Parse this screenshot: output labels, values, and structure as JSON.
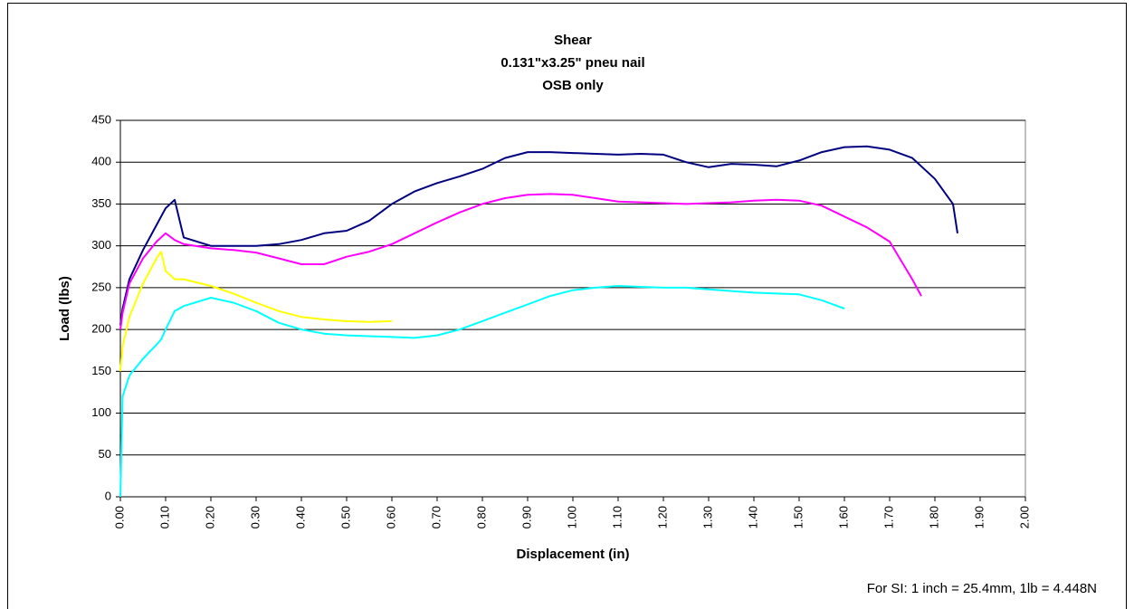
{
  "chart_data": {
    "type": "line",
    "title": [
      "Shear",
      "0.131\"x3.25\" pneu nail",
      "OSB only"
    ],
    "xlabel": "Displacement (in)",
    "ylabel": "Load (lbs)",
    "note": "For SI: 1 inch = 25.4mm, 1lb = 4.448N",
    "x": [
      0,
      0.005,
      0.02,
      0.05,
      0.08,
      0.09,
      0.1,
      0.12,
      0.14,
      0.2,
      0.25,
      0.3,
      0.35,
      0.4,
      0.45,
      0.5,
      0.55,
      0.6,
      0.65,
      0.7,
      0.75,
      0.8,
      0.85,
      0.9,
      0.95,
      1.0,
      1.05,
      1.1,
      1.15,
      1.2,
      1.25,
      1.3,
      1.35,
      1.4,
      1.45,
      1.5,
      1.55,
      1.6,
      1.65,
      1.7,
      1.75,
      1.77,
      1.8,
      1.84,
      1.85
    ],
    "series": [
      {
        "color": "#000080",
        "values": [
          205,
          225,
          260,
          295,
          325,
          335,
          345,
          355,
          310,
          300,
          300,
          300,
          302,
          307,
          315,
          318,
          330,
          350,
          365,
          375,
          383,
          392,
          405,
          412,
          412,
          411,
          410,
          409,
          410,
          409,
          400,
          394,
          398,
          397,
          395,
          402,
          412,
          418,
          419,
          415,
          405,
          395,
          380,
          350,
          315
        ]
      },
      {
        "color": "#ff00ff",
        "values": [
          200,
          220,
          255,
          285,
          305,
          310,
          315,
          307,
          302,
          297,
          295,
          292,
          285,
          278,
          278,
          287,
          293,
          302,
          315,
          328,
          340,
          350,
          357,
          361,
          362,
          361,
          357,
          353,
          352,
          351,
          350,
          351,
          352,
          354,
          355,
          354,
          348,
          335,
          322,
          305,
          260,
          240,
          null,
          null,
          null
        ]
      },
      {
        "color": "#ffff00",
        "values": [
          150,
          180,
          215,
          255,
          285,
          293,
          270,
          260,
          260,
          252,
          243,
          232,
          222,
          215,
          212,
          210,
          209,
          210,
          null,
          null,
          null,
          null,
          null,
          null,
          null,
          null,
          null,
          null,
          null,
          null,
          null,
          null,
          null,
          null,
          null,
          null,
          null,
          null,
          null,
          null,
          null,
          null,
          null,
          null,
          null
        ]
      },
      {
        "color": "#00ffff",
        "values": [
          0,
          120,
          145,
          165,
          182,
          188,
          200,
          222,
          228,
          238,
          232,
          222,
          208,
          200,
          195,
          193,
          192,
          191,
          190,
          193,
          200,
          210,
          220,
          230,
          240,
          247,
          250,
          252,
          251,
          250,
          250,
          248,
          246,
          244,
          243,
          242,
          235,
          225,
          null,
          null,
          null,
          null,
          null,
          null,
          null
        ]
      }
    ],
    "xlim": [
      0,
      2
    ],
    "ylim": [
      0,
      450
    ],
    "xticks": [
      {
        "value": 0,
        "label": "0.00"
      },
      {
        "value": 0.1,
        "label": "0.10"
      },
      {
        "value": 0.2,
        "label": "0.20"
      },
      {
        "value": 0.3,
        "label": "0.30"
      },
      {
        "value": 0.4,
        "label": "0.40"
      },
      {
        "value": 0.5,
        "label": "0.50"
      },
      {
        "value": 0.6,
        "label": "0.60"
      },
      {
        "value": 0.7,
        "label": "0.70"
      },
      {
        "value": 0.8,
        "label": "0.80"
      },
      {
        "value": 0.9,
        "label": "0.90"
      },
      {
        "value": 1,
        "label": "1.00"
      },
      {
        "value": 1.1,
        "label": "1.10"
      },
      {
        "value": 1.2,
        "label": "1.20"
      },
      {
        "value": 1.3,
        "label": "1.30"
      },
      {
        "value": 1.4,
        "label": "1.40"
      },
      {
        "value": 1.5,
        "label": "1.50"
      },
      {
        "value": 1.6,
        "label": "1.60"
      },
      {
        "value": 1.7,
        "label": "1.70"
      },
      {
        "value": 1.8,
        "label": "1.80"
      },
      {
        "value": 1.9,
        "label": "1.90"
      },
      {
        "value": 2,
        "label": "2.00"
      }
    ],
    "yticks": [
      0,
      50,
      100,
      150,
      200,
      250,
      300,
      350,
      400,
      450
    ],
    "grid": true
  }
}
